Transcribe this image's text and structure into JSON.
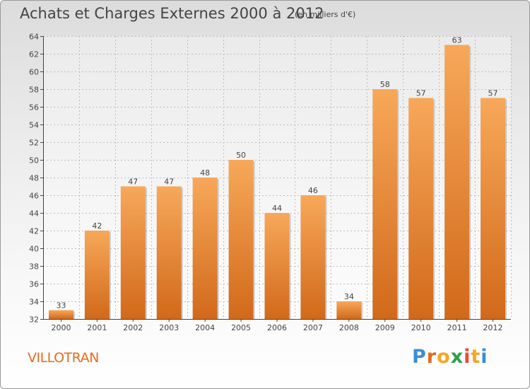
{
  "header": {
    "title": "Achats et Charges Externes 2000 à 2012",
    "subtitle": "(en milliers d'€)"
  },
  "footer": {
    "commune": "VILLOTRAN",
    "logo": "Proxiti",
    "logo_colors": [
      "#3b8fd6",
      "#e8681c",
      "#f5a623",
      "#2e9f4a",
      "#e84c3d",
      "#f5a623",
      "#3b8fd6"
    ]
  },
  "chart_data": {
    "type": "bar",
    "title": "Achats et Charges Externes 2000 à 2012",
    "subtitle": "(en milliers d'€)",
    "categories": [
      "2000",
      "2001",
      "2002",
      "2003",
      "2004",
      "2005",
      "2006",
      "2007",
      "2008",
      "2009",
      "2010",
      "2011",
      "2012"
    ],
    "values": [
      33,
      42,
      47,
      47,
      48,
      50,
      44,
      46,
      34,
      58,
      57,
      63,
      57
    ],
    "data_labels": [
      "33",
      "42",
      "47",
      "47",
      "48",
      "50",
      "44",
      "46",
      "34",
      "58",
      "57",
      "63",
      "57"
    ],
    "ylim": [
      32,
      64
    ],
    "yticks": [
      32,
      34,
      36,
      38,
      40,
      42,
      44,
      46,
      48,
      50,
      52,
      54,
      56,
      58,
      60,
      62,
      64
    ],
    "grid": true,
    "bar_color_light": "#f7a85a",
    "bar_color_dark": "#d2691a"
  }
}
